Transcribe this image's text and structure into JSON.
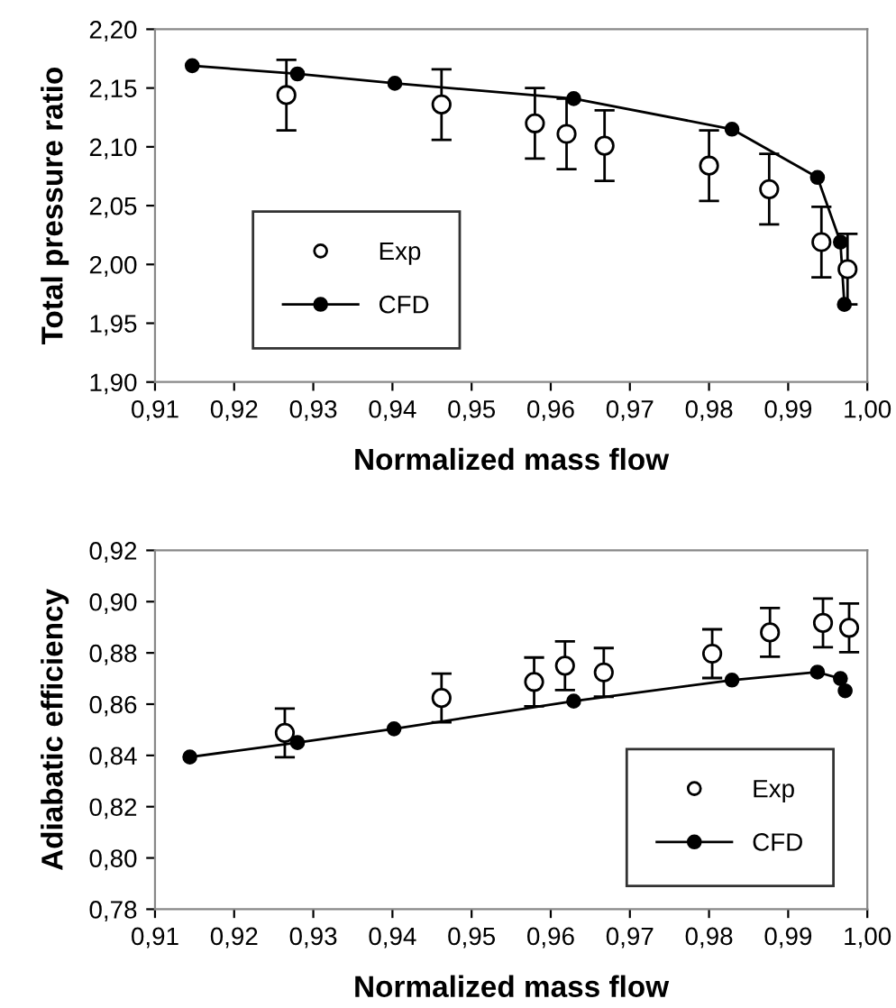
{
  "chart_data": [
    {
      "type": "scatter",
      "xlabel": "Normalized mass flow",
      "ylabel": "Total pressure ratio",
      "legend": "bottom left",
      "grid": false,
      "xlim": [
        0.91,
        1.0
      ],
      "xticks": [
        {
          "value": 0.91,
          "label": "0,91"
        },
        {
          "value": 0.92,
          "label": "0,92"
        },
        {
          "value": 0.93,
          "label": "0,93"
        },
        {
          "value": 0.94,
          "label": "0,94"
        },
        {
          "value": 0.95,
          "label": "0,95"
        },
        {
          "value": 0.96,
          "label": "0,96"
        },
        {
          "value": 0.97,
          "label": "0,97"
        },
        {
          "value": 0.98,
          "label": "0,98"
        },
        {
          "value": 0.99,
          "label": "0,99"
        },
        {
          "value": 1.0,
          "label": "1,00"
        }
      ],
      "ylim": [
        1.9,
        2.2
      ],
      "yticks": [
        {
          "value": 1.9,
          "label": "1,90"
        },
        {
          "value": 1.95,
          "label": "1,95"
        },
        {
          "value": 2.0,
          "label": "2,00"
        },
        {
          "value": 2.05,
          "label": "2,05"
        },
        {
          "value": 2.1,
          "label": "2,10"
        },
        {
          "value": 2.15,
          "label": "2,15"
        },
        {
          "value": 2.2,
          "label": "2,20"
        }
      ],
      "series": [
        {
          "name": "Exp",
          "marker": "circle",
          "color": "#000000",
          "x": [
            0.9266,
            0.9462,
            0.958,
            0.962,
            0.9668,
            0.98,
            0.9876,
            0.9942,
            0.9975
          ],
          "values": [
            2.144,
            2.136,
            2.12,
            2.111,
            2.101,
            2.084,
            2.064,
            2.019,
            1.996
          ],
          "errors": [
            0.03,
            0.03,
            0.03,
            0.03,
            0.03,
            0.03,
            0.03,
            0.03,
            0.03
          ]
        },
        {
          "name": "CFD",
          "type": "line",
          "marker": "circle",
          "line_style": "solid",
          "color": "#000000",
          "x": [
            0.9147,
            0.928,
            0.9403,
            0.9629,
            0.9829,
            0.9937,
            0.9966,
            0.9971
          ],
          "values": [
            2.169,
            2.162,
            2.154,
            2.141,
            2.115,
            2.074,
            2.019,
            1.966
          ]
        }
      ]
    },
    {
      "type": "scatter",
      "xlabel": "Normalized mass flow",
      "ylabel": "Adiabatic efficiency",
      "legend": "bottom right",
      "grid": false,
      "xlim": [
        0.91,
        1.0
      ],
      "xticks": [
        {
          "value": 0.91,
          "label": "0,91"
        },
        {
          "value": 0.92,
          "label": "0,92"
        },
        {
          "value": 0.93,
          "label": "0,93"
        },
        {
          "value": 0.94,
          "label": "0,94"
        },
        {
          "value": 0.95,
          "label": "0,95"
        },
        {
          "value": 0.96,
          "label": "0,96"
        },
        {
          "value": 0.97,
          "label": "0,97"
        },
        {
          "value": 0.98,
          "label": "0,98"
        },
        {
          "value": 0.99,
          "label": "0,99"
        },
        {
          "value": 1.0,
          "label": "1,00"
        }
      ],
      "ylim": [
        0.78,
        0.92
      ],
      "yticks": [
        {
          "value": 0.78,
          "label": "0,78"
        },
        {
          "value": 0.8,
          "label": "0,80"
        },
        {
          "value": 0.82,
          "label": "0,82"
        },
        {
          "value": 0.84,
          "label": "0,84"
        },
        {
          "value": 0.86,
          "label": "0,86"
        },
        {
          "value": 0.88,
          "label": "0,88"
        },
        {
          "value": 0.9,
          "label": "0,90"
        },
        {
          "value": 0.92,
          "label": "0,92"
        }
      ],
      "series": [
        {
          "name": "Exp",
          "marker": "circle",
          "color": "#000000",
          "x": [
            0.9264,
            0.9462,
            0.9579,
            0.9618,
            0.9667,
            0.9804,
            0.9877,
            0.9944,
            0.9977
          ],
          "values": [
            0.8488,
            0.8624,
            0.8687,
            0.875,
            0.8724,
            0.8797,
            0.888,
            0.8917,
            0.8898
          ],
          "errors": [
            0.0095,
            0.0095,
            0.0095,
            0.0095,
            0.0095,
            0.0095,
            0.0095,
            0.0095,
            0.0095
          ]
        },
        {
          "name": "CFD",
          "type": "line",
          "marker": "circle",
          "line_style": "solid",
          "color": "#000000",
          "x": [
            0.9144,
            0.928,
            0.9402,
            0.9629,
            0.9829,
            0.9937,
            0.9966,
            0.9972
          ],
          "values": [
            0.8394,
            0.845,
            0.8504,
            0.8612,
            0.8694,
            0.8725,
            0.87,
            0.8652
          ]
        }
      ]
    }
  ]
}
